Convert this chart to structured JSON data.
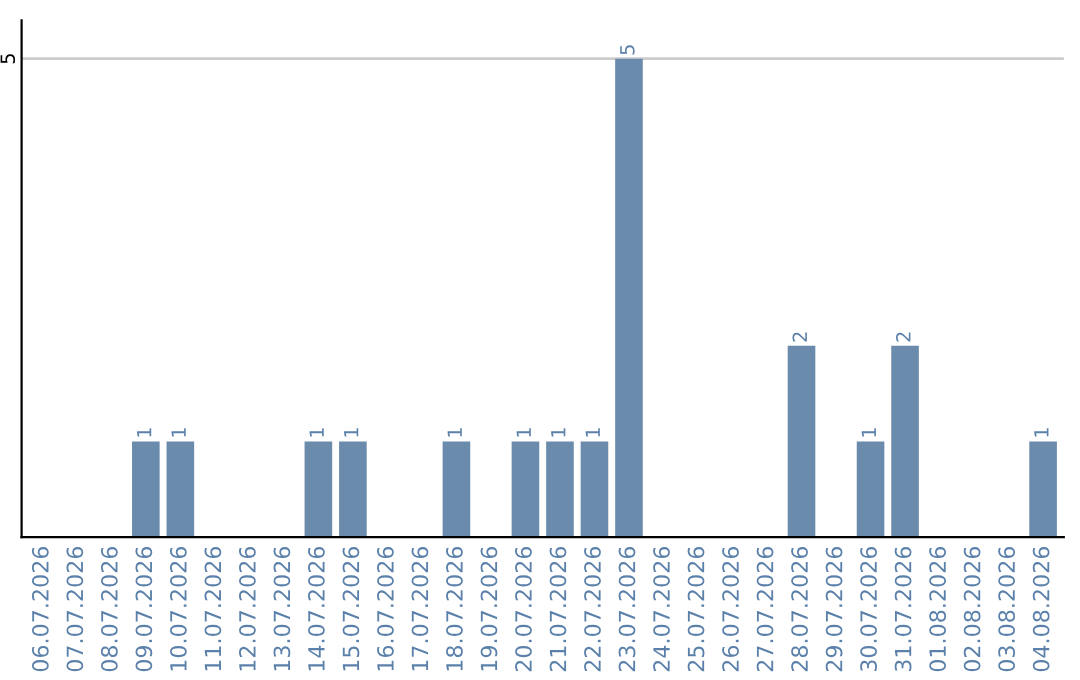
{
  "chart_data": {
    "type": "bar",
    "categories": [
      "06.07.2026",
      "07.07.2026",
      "08.07.2026",
      "09.07.2026",
      "10.07.2026",
      "11.07.2026",
      "12.07.2026",
      "13.07.2026",
      "14.07.2026",
      "15.07.2026",
      "16.07.2026",
      "17.07.2026",
      "18.07.2026",
      "19.07.2026",
      "20.07.2026",
      "21.07.2026",
      "22.07.2026",
      "23.07.2026",
      "24.07.2026",
      "25.07.2026",
      "26.07.2026",
      "27.07.2026",
      "28.07.2026",
      "29.07.2026",
      "30.07.2026",
      "31.07.2026",
      "01.08.2026",
      "02.08.2026",
      "03.08.2026",
      "04.08.2026"
    ],
    "values": [
      0,
      0,
      0,
      1,
      1,
      0,
      0,
      0,
      1,
      1,
      0,
      0,
      1,
      0,
      1,
      1,
      1,
      5,
      0,
      0,
      0,
      0,
      2,
      0,
      1,
      2,
      0,
      0,
      0,
      1
    ],
    "value_labels": [
      null,
      null,
      null,
      "1",
      "1",
      null,
      null,
      null,
      "1",
      "1",
      null,
      null,
      "1",
      null,
      "1",
      "1",
      "1",
      "5",
      null,
      null,
      null,
      null,
      "2",
      null,
      "1",
      "2",
      null,
      null,
      null,
      "1"
    ],
    "color": "#6a8bab",
    "ylim": [
      0,
      5.4
    ],
    "yticks": [
      5
    ],
    "grid": "y"
  }
}
